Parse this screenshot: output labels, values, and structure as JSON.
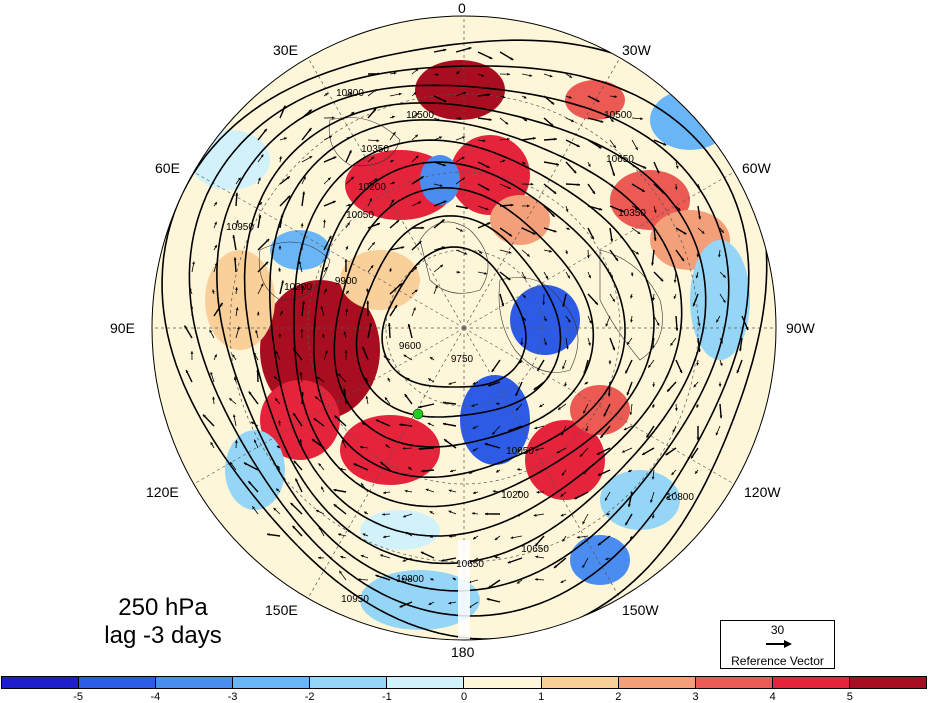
{
  "figure": {
    "title_line1": "250 hPa",
    "title_line2": "lag -3 days"
  },
  "longitude_labels": [
    "0",
    "30W",
    "60W",
    "90W",
    "120W",
    "150W",
    "180",
    "150E",
    "120E",
    "90E",
    "60E",
    "30E"
  ],
  "contour_labels": [
    "10800",
    "10500",
    "10350",
    "10200",
    "10050",
    "9900",
    "9750",
    "9600",
    "10650",
    "10950",
    "10500",
    "10350",
    "10200",
    "10050",
    "10650",
    "10800",
    "10950",
    "10650",
    "10800",
    "10200"
  ],
  "reference_vector": {
    "magnitude": "30",
    "label": "Reference Vector"
  },
  "colorbar": {
    "ticks": [
      "-5",
      "-4",
      "-3",
      "-2",
      "-1",
      "0",
      "1",
      "2",
      "3",
      "4",
      "5"
    ],
    "colors": [
      "#1e1ecd",
      "#2d5be6",
      "#4b8cf0",
      "#6ab5f5",
      "#95d6f7",
      "#d2f2fb",
      "#fef6d8",
      "#f9cf9a",
      "#f3a07a",
      "#ec5a54",
      "#e5233b",
      "#a80e1f"
    ]
  },
  "map_style": {
    "positive_colors": [
      "#fef6d8",
      "#f9cf9a",
      "#f3a07a",
      "#ec5a54",
      "#e5233b",
      "#a80e1f"
    ],
    "negative_colors": [
      "#d2f2fb",
      "#95d6f7",
      "#6ab5f5",
      "#4b8cf0",
      "#2d5be6",
      "#1e1ecd"
    ],
    "marker_color": "#22cc22"
  }
}
